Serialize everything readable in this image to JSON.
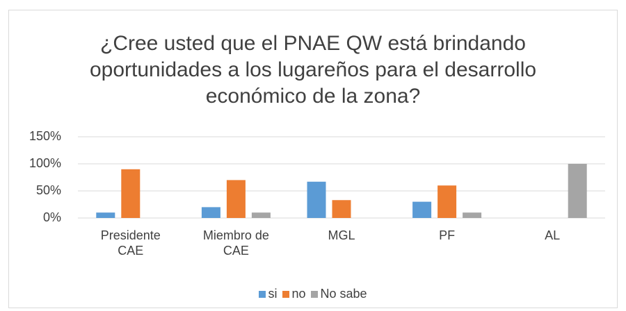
{
  "chart_data": {
    "type": "bar",
    "title": "¿Cree usted que el PNAE QW está brindando oportunidades a los lugareños para el desarrollo económico de la zona?",
    "categories": [
      "Presidente CAE",
      "Miembro de CAE",
      "MGL",
      "PF",
      "AL"
    ],
    "series": [
      {
        "name": "si",
        "color": "#5b9bd5",
        "values": [
          10,
          20,
          67,
          30,
          0
        ]
      },
      {
        "name": "no",
        "color": "#ed7d31",
        "values": [
          90,
          70,
          33,
          60,
          0
        ]
      },
      {
        "name": "No sabe",
        "color": "#a5a5a5",
        "values": [
          0,
          10,
          0,
          10,
          100
        ]
      }
    ],
    "ylim": [
      0,
      150
    ],
    "yticks": [
      {
        "value": 0,
        "label": "0%"
      },
      {
        "value": 50,
        "label": "50%"
      },
      {
        "value": 100,
        "label": "100%"
      },
      {
        "value": 150,
        "label": "150%"
      }
    ],
    "grid": true,
    "legend": "bottom"
  }
}
